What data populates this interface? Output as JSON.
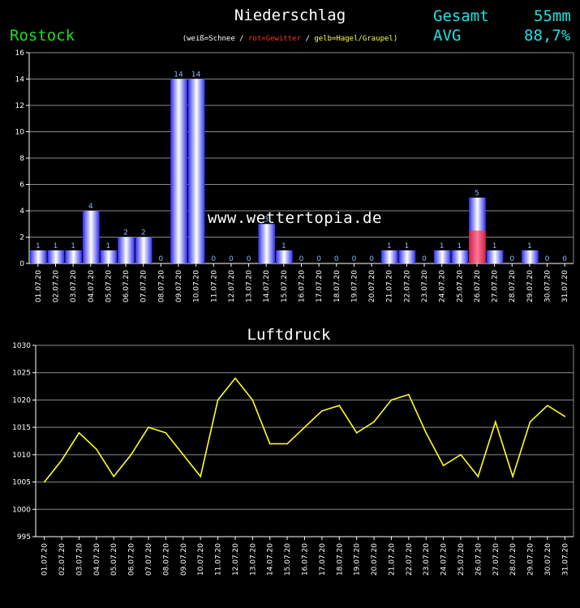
{
  "header": {
    "title": "Niederschlag",
    "station": "Rostock",
    "legend": [
      {
        "text": "(weiß=Schnee",
        "color": "#ffffff"
      },
      {
        "text": " / ",
        "color": "#ffffff"
      },
      {
        "text": "rot=Gewitter",
        "color": "#ff3030"
      },
      {
        "text": " / ",
        "color": "#ffffff"
      },
      {
        "text": "gelb=Hagel/Graupel)",
        "color": "#ffff40"
      }
    ],
    "gesamt_label": "Gesamt",
    "gesamt_value": "55mm",
    "avg_label": "AVG",
    "avg_value": "88,7%"
  },
  "watermark": "www.wettertopia.de",
  "chart_data": [
    {
      "type": "bar",
      "title": "",
      "xlabel": "",
      "ylabel": "",
      "ylim": [
        0,
        16
      ],
      "yticks": [
        0,
        2,
        4,
        6,
        8,
        10,
        12,
        14,
        16
      ],
      "grid": true,
      "categories": [
        "01.07.20",
        "02.07.20",
        "03.07.20",
        "04.07.20",
        "05.07.20",
        "06.07.20",
        "07.07.20",
        "08.07.20",
        "09.07.20",
        "10.07.20",
        "11.07.20",
        "12.07.20",
        "13.07.20",
        "14.07.20",
        "15.07.20",
        "16.07.20",
        "17.07.20",
        "18.07.20",
        "19.07.20",
        "20.07.20",
        "21.07.20",
        "22.07.20",
        "23.07.20",
        "24.07.20",
        "25.07.20",
        "26.07.20",
        "27.07.20",
        "28.07.20",
        "29.07.20",
        "30.07.20",
        "31.07.20"
      ],
      "values": [
        1,
        1,
        1,
        4,
        1,
        2,
        2,
        0,
        14,
        14,
        0,
        0,
        0,
        3,
        1,
        0,
        0,
        0,
        0,
        0,
        1,
        1,
        0,
        1,
        1,
        5,
        1,
        0,
        1,
        0,
        0
      ],
      "thunderstorm": [
        0,
        0,
        0,
        0,
        0,
        0,
        0,
        0,
        0,
        0,
        0,
        0,
        0,
        0,
        0,
        0,
        0,
        0,
        0,
        0,
        0,
        0,
        0,
        0,
        0,
        2.5,
        0,
        0,
        0,
        0,
        0
      ],
      "colors": {
        "rain": "#2e2ef0",
        "rain_light": "#ffffff",
        "thunderstorm": "#cc2244",
        "labels": "#8fb4ff"
      }
    },
    {
      "type": "line",
      "title": "Luftdruck",
      "xlabel": "",
      "ylabel": "",
      "ylim": [
        995,
        1030
      ],
      "yticks": [
        995,
        1000,
        1005,
        1010,
        1015,
        1020,
        1025,
        1030
      ],
      "grid": true,
      "x": [
        "01.07.20",
        "02.07.20",
        "03.07.20",
        "04.07.20",
        "05.07.20",
        "06.07.20",
        "07.07.20",
        "08.07.20",
        "09.07.20",
        "10.07.20",
        "11.07.20",
        "12.07.20",
        "13.07.20",
        "14.07.20",
        "15.07.20",
        "16.07.20",
        "17.07.20",
        "18.07.20",
        "19.07.20",
        "20.07.20",
        "21.07.20",
        "22.07.20",
        "23.07.20",
        "24.07.20",
        "25.07.20",
        "26.07.20",
        "27.07.20",
        "28.07.20",
        "29.07.20",
        "30.07.20",
        "31.07.20"
      ],
      "values": [
        1005,
        1009,
        1014,
        1011,
        1006,
        1010,
        1015,
        1014,
        1010,
        1006,
        1020,
        1024,
        1020,
        1012,
        1012,
        1015,
        1018,
        1019,
        1014,
        1016,
        1020,
        1021,
        1014,
        1008,
        1010,
        1006,
        1016,
        1006,
        1016,
        1019,
        1017
      ],
      "colors": {
        "line": "#ffff22"
      }
    }
  ]
}
